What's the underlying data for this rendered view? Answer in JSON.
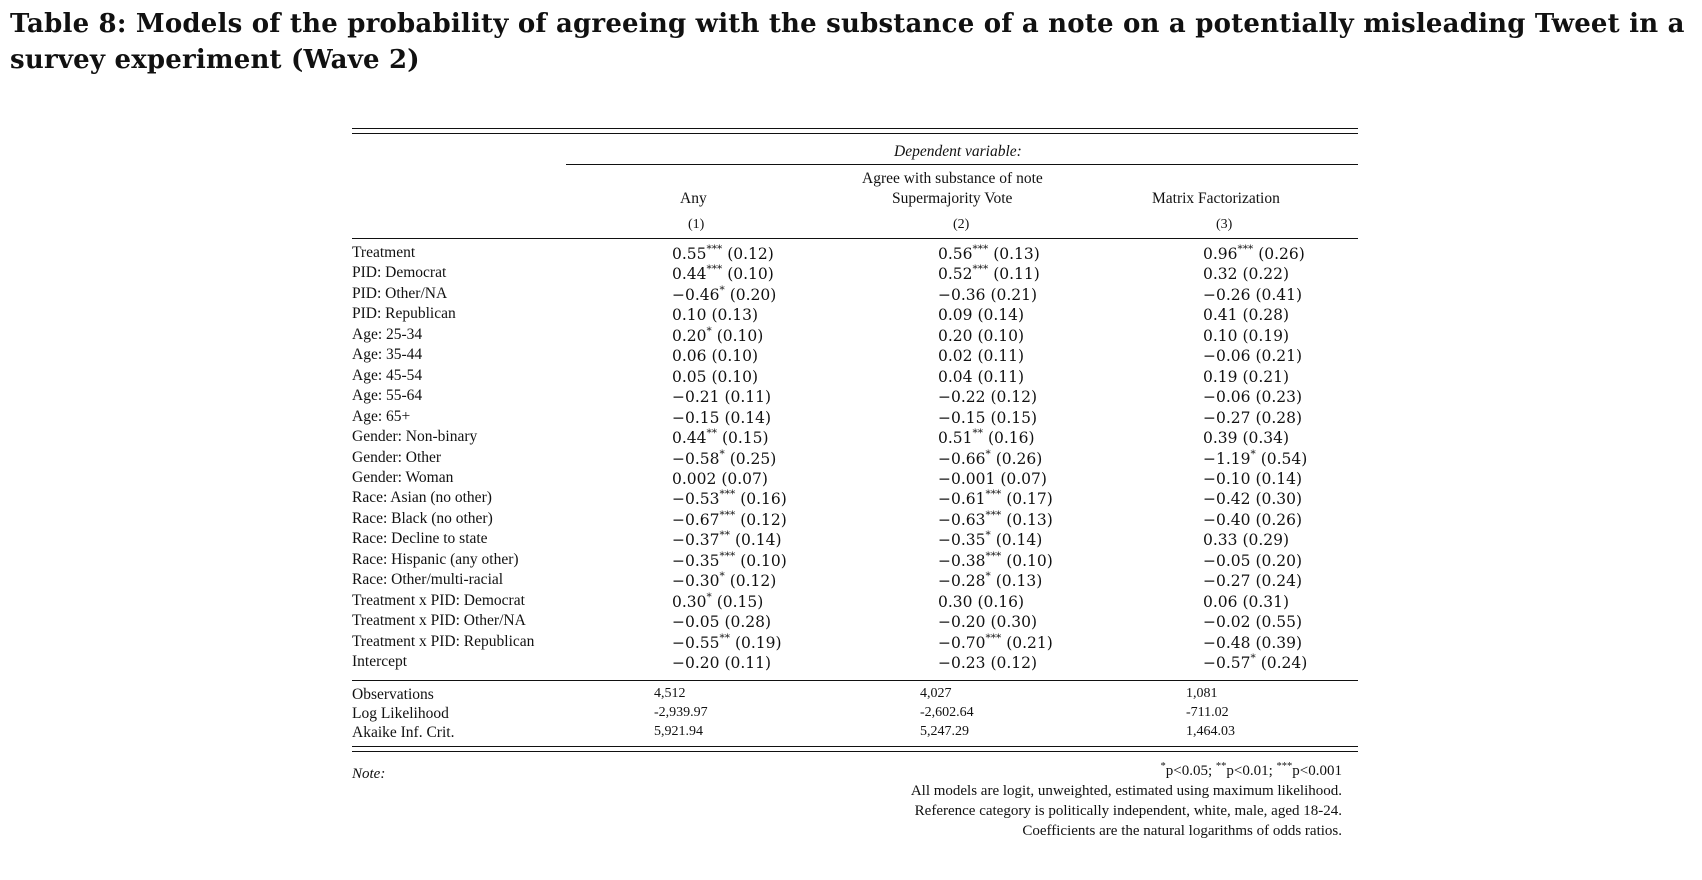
{
  "title": "Table 8: Models of the probability of agreeing with the substance of a note on a potentially misleading Tweet in a survey experiment (Wave 2)",
  "header": {
    "dependent_variable": "Dependent variable:",
    "dv_line1": "Agree with substance of note",
    "col1_name": "Any",
    "col2_name": "Supermajority Vote",
    "col3_name": "Matrix Factorization",
    "col1_num": "(1)",
    "col2_num": "(2)",
    "col3_num": "(3)"
  },
  "rows": [
    {
      "label": "Treatment",
      "c1": [
        "0.55",
        "***",
        "(0.12)"
      ],
      "c2": [
        "0.56",
        "***",
        "(0.13)"
      ],
      "c3": [
        "0.96",
        "***",
        "(0.26)"
      ]
    },
    {
      "label": "PID: Democrat",
      "c1": [
        "0.44",
        "***",
        "(0.10)"
      ],
      "c2": [
        "0.52",
        "***",
        "(0.11)"
      ],
      "c3": [
        "0.32",
        "",
        "(0.22)"
      ]
    },
    {
      "label": "PID: Other/NA",
      "c1": [
        "−0.46",
        "*",
        "(0.20)"
      ],
      "c2": [
        "−0.36",
        "",
        "(0.21)"
      ],
      "c3": [
        "−0.26",
        "",
        "(0.41)"
      ]
    },
    {
      "label": "PID: Republican",
      "c1": [
        "0.10",
        "",
        "(0.13)"
      ],
      "c2": [
        "0.09",
        "",
        "(0.14)"
      ],
      "c3": [
        "0.41",
        "",
        "(0.28)"
      ]
    },
    {
      "label": "Age: 25-34",
      "c1": [
        "0.20",
        "*",
        "(0.10)"
      ],
      "c2": [
        "0.20",
        "",
        "(0.10)"
      ],
      "c3": [
        "0.10",
        "",
        "(0.19)"
      ]
    },
    {
      "label": "Age: 35-44",
      "c1": [
        "0.06",
        "",
        "(0.10)"
      ],
      "c2": [
        "0.02",
        "",
        "(0.11)"
      ],
      "c3": [
        "−0.06",
        "",
        "(0.21)"
      ]
    },
    {
      "label": "Age: 45-54",
      "c1": [
        "0.05",
        "",
        "(0.10)"
      ],
      "c2": [
        "0.04",
        "",
        "(0.11)"
      ],
      "c3": [
        "0.19",
        "",
        "(0.21)"
      ]
    },
    {
      "label": "Age: 55-64",
      "c1": [
        "−0.21",
        "",
        "(0.11)"
      ],
      "c2": [
        "−0.22",
        "",
        "(0.12)"
      ],
      "c3": [
        "−0.06",
        "",
        "(0.23)"
      ]
    },
    {
      "label": "Age: 65+",
      "c1": [
        "−0.15",
        "",
        "(0.14)"
      ],
      "c2": [
        "−0.15",
        "",
        "(0.15)"
      ],
      "c3": [
        "−0.27",
        "",
        "(0.28)"
      ]
    },
    {
      "label": "Gender: Non-binary",
      "c1": [
        "0.44",
        "**",
        "(0.15)"
      ],
      "c2": [
        "0.51",
        "**",
        "(0.16)"
      ],
      "c3": [
        "0.39",
        "",
        "(0.34)"
      ]
    },
    {
      "label": "Gender: Other",
      "c1": [
        "−0.58",
        "*",
        "(0.25)"
      ],
      "c2": [
        "−0.66",
        "*",
        "(0.26)"
      ],
      "c3": [
        "−1.19",
        "*",
        "(0.54)"
      ]
    },
    {
      "label": "Gender: Woman",
      "c1": [
        "0.002",
        "",
        "(0.07)"
      ],
      "c2": [
        "−0.001",
        "",
        "(0.07)"
      ],
      "c3": [
        "−0.10",
        "",
        "(0.14)"
      ]
    },
    {
      "label": "Race: Asian (no other)",
      "c1": [
        "−0.53",
        "***",
        "(0.16)"
      ],
      "c2": [
        "−0.61",
        "***",
        "(0.17)"
      ],
      "c3": [
        "−0.42",
        "",
        "(0.30)"
      ]
    },
    {
      "label": "Race: Black (no other)",
      "c1": [
        "−0.67",
        "***",
        "(0.12)"
      ],
      "c2": [
        "−0.63",
        "***",
        "(0.13)"
      ],
      "c3": [
        "−0.40",
        "",
        "(0.26)"
      ]
    },
    {
      "label": "Race: Decline to state",
      "c1": [
        "−0.37",
        "**",
        "(0.14)"
      ],
      "c2": [
        "−0.35",
        "*",
        "(0.14)"
      ],
      "c3": [
        "0.33",
        "",
        "(0.29)"
      ]
    },
    {
      "label": "Race: Hispanic (any other)",
      "c1": [
        "−0.35",
        "***",
        "(0.10)"
      ],
      "c2": [
        "−0.38",
        "***",
        "(0.10)"
      ],
      "c3": [
        "−0.05",
        "",
        "(0.20)"
      ]
    },
    {
      "label": "Race: Other/multi-racial",
      "c1": [
        "−0.30",
        "*",
        "(0.12)"
      ],
      "c2": [
        "−0.28",
        "*",
        "(0.13)"
      ],
      "c3": [
        "−0.27",
        "",
        "(0.24)"
      ]
    },
    {
      "label": "Treatment x PID: Democrat",
      "c1": [
        "0.30",
        "*",
        "(0.15)"
      ],
      "c2": [
        "0.30",
        "",
        "(0.16)"
      ],
      "c3": [
        "0.06",
        "",
        "(0.31)"
      ]
    },
    {
      "label": "Treatment x PID: Other/NA",
      "c1": [
        "−0.05",
        "",
        "(0.28)"
      ],
      "c2": [
        "−0.20",
        "",
        "(0.30)"
      ],
      "c3": [
        "−0.02",
        "",
        "(0.55)"
      ]
    },
    {
      "label": "Treatment x PID: Republican",
      "c1": [
        "−0.55",
        "**",
        "(0.19)"
      ],
      "c2": [
        "−0.70",
        "***",
        "(0.21)"
      ],
      "c3": [
        "−0.48",
        "",
        "(0.39)"
      ]
    },
    {
      "label": "Intercept",
      "c1": [
        "−0.20",
        "",
        "(0.11)"
      ],
      "c2": [
        "−0.23",
        "",
        "(0.12)"
      ],
      "c3": [
        "−0.57",
        "*",
        "(0.24)"
      ]
    }
  ],
  "stats": [
    {
      "label": "Observations",
      "c1": "4,512",
      "c2": "4,027",
      "c3": "1,081"
    },
    {
      "label": "Log Likelihood",
      "c1": "-2,939.97",
      "c2": "-2,602.64",
      "c3": "-711.02"
    },
    {
      "label": "Akaike Inf. Crit.",
      "c1": "5,921.94",
      "c2": "5,247.29",
      "c3": "1,464.03"
    }
  ],
  "note": {
    "label": "Note:",
    "sig_parts": [
      "*",
      "p<0.05; ",
      "**",
      "p<0.01; ",
      "***",
      "p<0.001"
    ],
    "lines": [
      "All models are logit, unweighted, estimated using maximum likelihood.",
      "Reference category is politically independent, white, male, aged 18-24.",
      "Coefficients are the natural logarithms of odds ratios."
    ]
  }
}
